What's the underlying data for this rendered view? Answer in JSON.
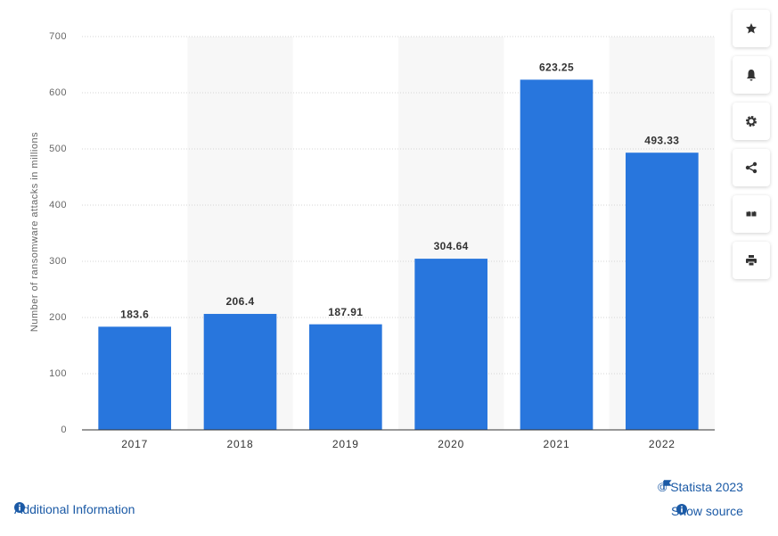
{
  "chart_data": {
    "type": "bar",
    "y_label": "Number of ransomware attacks in millions",
    "categories": [
      "2017",
      "2018",
      "2019",
      "2020",
      "2021",
      "2022"
    ],
    "values": [
      183.6,
      206.4,
      187.91,
      304.64,
      623.25,
      493.33
    ],
    "color": "#2876dd",
    "ylim": [
      0,
      700
    ],
    "yticks": [
      0,
      100,
      200,
      300,
      400,
      500,
      600,
      700
    ],
    "grid": true
  },
  "links": {
    "additional_info": "Additional Information",
    "copyright": "© Statista 2023",
    "show_source": "Show source"
  }
}
